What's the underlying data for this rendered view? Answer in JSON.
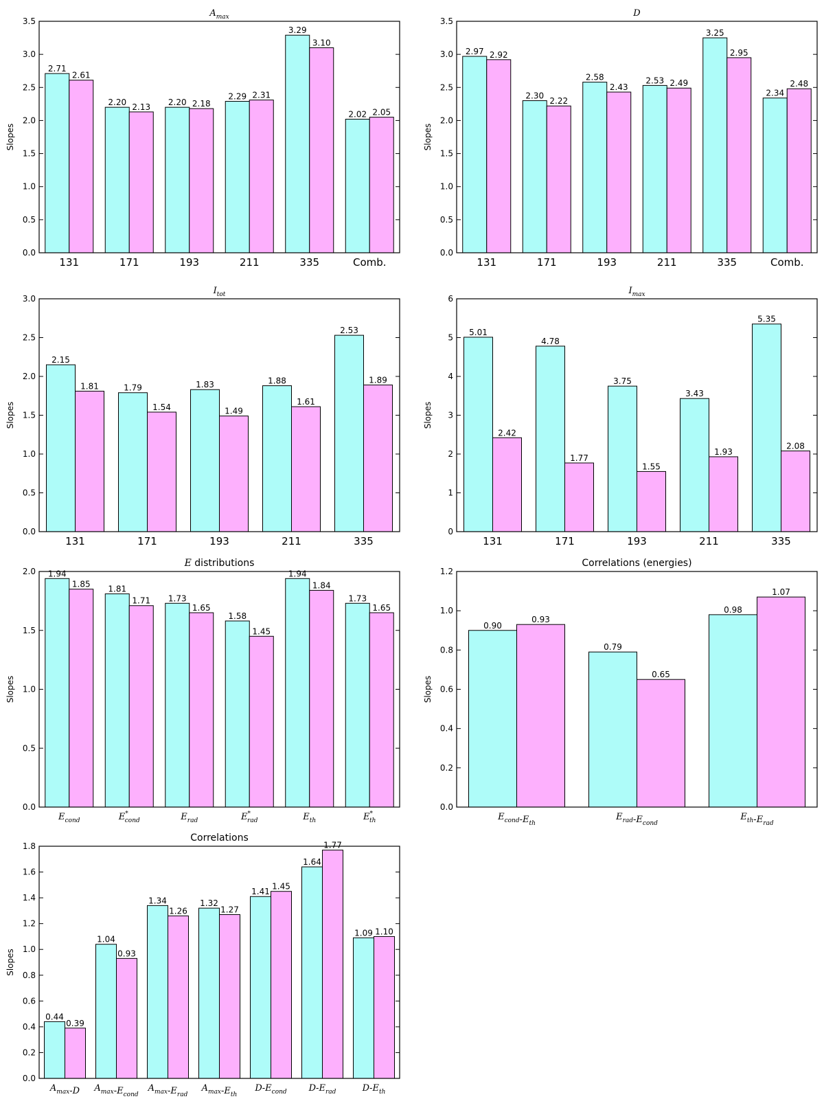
{
  "colors": {
    "series_a": "#aefcf9",
    "series_b": "#fdb0fd",
    "bar_edge": "#000000"
  },
  "chart_data": [
    {
      "type": "bar",
      "title": "A_max",
      "ylabel": "Slopes",
      "ylim": [
        0,
        3.5
      ],
      "yticks": [
        "0.0",
        "0.5",
        "1.0",
        "1.5",
        "2.0",
        "2.5",
        "3.0",
        "3.5"
      ],
      "categories": [
        "131",
        "171",
        "193",
        "211",
        "335",
        "Comb."
      ],
      "series": [
        {
          "values": [
            2.71,
            2.2,
            2.2,
            2.29,
            3.29,
            2.02
          ]
        },
        {
          "values": [
            2.61,
            2.13,
            2.18,
            2.31,
            3.1,
            2.05
          ]
        }
      ],
      "value_labels": [
        [
          "2.71",
          "2.20",
          "2.20",
          "2.29",
          "3.29",
          "2.02"
        ],
        [
          "2.61",
          "2.13",
          "2.18",
          "2.31",
          "3.10",
          "2.05"
        ]
      ]
    },
    {
      "type": "bar",
      "title": "D",
      "ylabel": "Slopes",
      "ylim": [
        0,
        3.5
      ],
      "yticks": [
        "0.0",
        "0.5",
        "1.0",
        "1.5",
        "2.0",
        "2.5",
        "3.0",
        "3.5"
      ],
      "categories": [
        "131",
        "171",
        "193",
        "211",
        "335",
        "Comb."
      ],
      "series": [
        {
          "values": [
            2.97,
            2.3,
            2.58,
            2.53,
            3.25,
            2.34
          ]
        },
        {
          "values": [
            2.92,
            2.22,
            2.43,
            2.49,
            2.95,
            2.48
          ]
        }
      ],
      "value_labels": [
        [
          "2.97",
          "2.30",
          "2.58",
          "2.53",
          "3.25",
          "2.34"
        ],
        [
          "2.92",
          "2.22",
          "2.43",
          "2.49",
          "2.95",
          "2.48"
        ]
      ]
    },
    {
      "type": "bar",
      "title": "I_tot",
      "ylabel": "Slopes",
      "ylim": [
        0,
        3.0
      ],
      "yticks": [
        "0.0",
        "0.5",
        "1.0",
        "1.5",
        "2.0",
        "2.5",
        "3.0"
      ],
      "categories": [
        "131",
        "171",
        "193",
        "211",
        "335"
      ],
      "series": [
        {
          "values": [
            2.15,
            1.79,
            1.83,
            1.88,
            2.53
          ]
        },
        {
          "values": [
            1.81,
            1.54,
            1.49,
            1.61,
            1.89
          ]
        }
      ],
      "value_labels": [
        [
          "2.15",
          "1.79",
          "1.83",
          "1.88",
          "2.53"
        ],
        [
          "1.81",
          "1.54",
          "1.49",
          "1.61",
          "1.89"
        ]
      ]
    },
    {
      "type": "bar",
      "title": "I_max",
      "ylabel": "Slopes",
      "ylim": [
        0,
        6
      ],
      "yticks": [
        "0",
        "1",
        "2",
        "3",
        "4",
        "5",
        "6"
      ],
      "categories": [
        "131",
        "171",
        "193",
        "211",
        "335"
      ],
      "series": [
        {
          "values": [
            5.01,
            4.78,
            3.75,
            3.43,
            5.35
          ]
        },
        {
          "values": [
            2.42,
            1.77,
            1.55,
            1.93,
            2.08
          ]
        }
      ],
      "value_labels": [
        [
          "5.01",
          "4.78",
          "3.75",
          "3.43",
          "5.35"
        ],
        [
          "2.42",
          "1.77",
          "1.55",
          "1.93",
          "2.08"
        ]
      ]
    },
    {
      "type": "bar",
      "title": "E distributions",
      "ylabel": "Slopes",
      "ylim": [
        0,
        2.0
      ],
      "yticks": [
        "0.0",
        "0.5",
        "1.0",
        "1.5",
        "2.0"
      ],
      "categories": [
        "E_cond",
        "E*_cond",
        "E_rad",
        "E*_rad",
        "E_th",
        "E*_th"
      ],
      "series": [
        {
          "values": [
            1.94,
            1.81,
            1.73,
            1.58,
            1.94,
            1.73
          ]
        },
        {
          "values": [
            1.85,
            1.71,
            1.65,
            1.45,
            1.84,
            1.65
          ]
        }
      ],
      "value_labels": [
        [
          "1.94",
          "1.81",
          "1.73",
          "1.58",
          "1.94",
          "1.73"
        ],
        [
          "1.85",
          "1.71",
          "1.65",
          "1.45",
          "1.84",
          "1.65"
        ]
      ]
    },
    {
      "type": "bar",
      "title": "Correlations (energies)",
      "ylabel": "Slopes",
      "ylim": [
        0,
        1.2
      ],
      "yticks": [
        "0.0",
        "0.2",
        "0.4",
        "0.6",
        "0.8",
        "1.0",
        "1.2"
      ],
      "categories": [
        "E_cond-E_th",
        "E_rad-E_cond",
        "E_th-E_rad"
      ],
      "series": [
        {
          "values": [
            0.9,
            0.79,
            0.98
          ]
        },
        {
          "values": [
            0.93,
            0.65,
            1.07
          ]
        }
      ],
      "value_labels": [
        [
          "0.90",
          "0.79",
          "0.98"
        ],
        [
          "0.93",
          "0.65",
          "1.07"
        ]
      ]
    },
    {
      "type": "bar",
      "title": "Correlations",
      "ylabel": "Slopes",
      "ylim": [
        0,
        1.8
      ],
      "yticks": [
        "0.0",
        "0.2",
        "0.4",
        "0.6",
        "0.8",
        "1.0",
        "1.2",
        "1.4",
        "1.6",
        "1.8"
      ],
      "categories": [
        "A_max-D",
        "A_max-E_cond",
        "A_max-E_rad",
        "A_max-E_th",
        "D-E_cond",
        "D-E_rad",
        "D-E_th"
      ],
      "series": [
        {
          "values": [
            0.44,
            1.04,
            1.34,
            1.32,
            1.41,
            1.64,
            1.09
          ]
        },
        {
          "values": [
            0.39,
            0.93,
            1.26,
            1.27,
            1.45,
            1.77,
            1.1
          ]
        }
      ],
      "value_labels": [
        [
          "0.44",
          "1.04",
          "1.34",
          "1.32",
          "1.41",
          "1.64",
          "1.09"
        ],
        [
          "0.39",
          "0.93",
          "1.26",
          "1.27",
          "1.45",
          "1.77",
          "1.10"
        ]
      ]
    }
  ]
}
